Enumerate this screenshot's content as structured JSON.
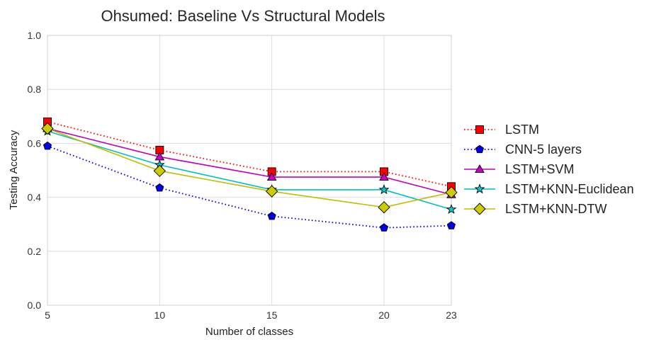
{
  "chart_data": {
    "type": "line",
    "title": "Ohsumed: Baseline Vs Structural Models",
    "xlabel": "Number of classes",
    "ylabel": "Testing Accuracy",
    "x": [
      5,
      10,
      15,
      20,
      23
    ],
    "x_tick_labels": [
      "5",
      "10",
      "15",
      "20",
      "23"
    ],
    "xlim": [
      5,
      23
    ],
    "ylim": [
      0.0,
      1.0
    ],
    "y_ticks": [
      0.0,
      0.2,
      0.4,
      0.6,
      0.8,
      1.0
    ],
    "y_tick_labels": [
      "0.0",
      "0.2",
      "0.4",
      "0.6",
      "0.8",
      "1.0"
    ],
    "grid": true,
    "legend_position": "right, outside plot",
    "series": [
      {
        "name": "LSTM",
        "values": [
          0.68,
          0.575,
          0.495,
          0.495,
          0.44
        ],
        "color": "#ff0000",
        "line_style": "dotted",
        "marker": "square",
        "marker_fill": "#ff0000"
      },
      {
        "name": "CNN-5 layers",
        "values": [
          0.59,
          0.435,
          0.33,
          0.287,
          0.295
        ],
        "color": "#0000cc",
        "line_style": "dotted",
        "marker": "pentagon",
        "marker_fill": "#0000ee"
      },
      {
        "name": "LSTM+SVM",
        "values": [
          0.655,
          0.55,
          0.475,
          0.475,
          0.41
        ],
        "color": "#bf00bf",
        "line_style": "solid",
        "marker": "triangle",
        "marker_fill": "#cc00cc"
      },
      {
        "name": "LSTM+KNN-Euclidean",
        "values": [
          0.645,
          0.52,
          0.428,
          0.428,
          0.355
        ],
        "color": "#00bfbf",
        "line_style": "solid",
        "marker": "star",
        "marker_fill": "#00cccc"
      },
      {
        "name": "LSTM+KNN-DTW",
        "values": [
          0.655,
          0.498,
          0.422,
          0.363,
          0.418
        ],
        "color": "#bfbf00",
        "line_style": "solid",
        "marker": "diamond",
        "marker_fill": "#cccc00"
      }
    ]
  }
}
